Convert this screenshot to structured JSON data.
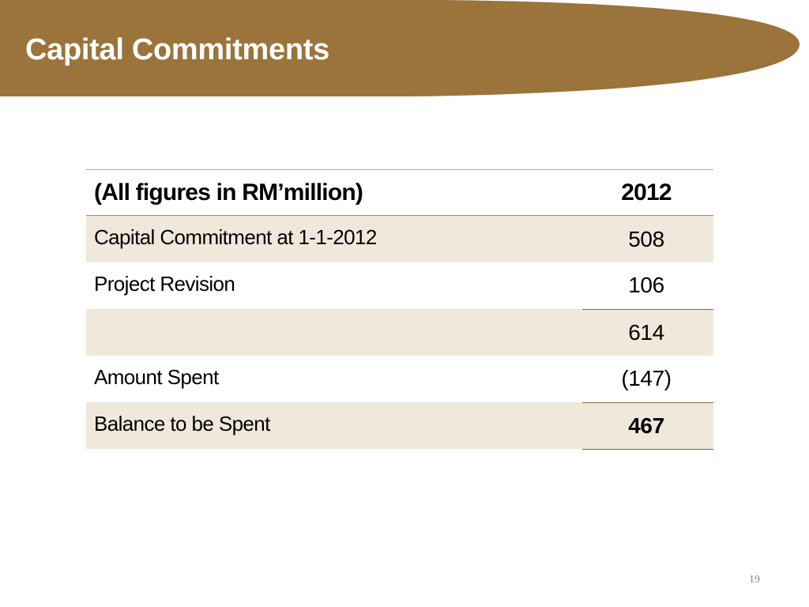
{
  "slide": {
    "title": "Capital Commitments",
    "page_number": "19",
    "colors": {
      "banner": "#9a743b",
      "row_shade": "#f1e8dc",
      "rule": "#8a6a3a"
    }
  },
  "table": {
    "header": {
      "label": "(All figures in RM’million)",
      "year": "2012"
    },
    "rows": [
      {
        "label": "Capital Commitment at 1-1-2012",
        "value": "508"
      },
      {
        "label": "Project Revision",
        "value": "106"
      },
      {
        "label": "",
        "value": "614"
      },
      {
        "label": "Amount Spent",
        "value": "(147)"
      },
      {
        "label": "Balance to be Spent",
        "value": "467"
      }
    ]
  }
}
